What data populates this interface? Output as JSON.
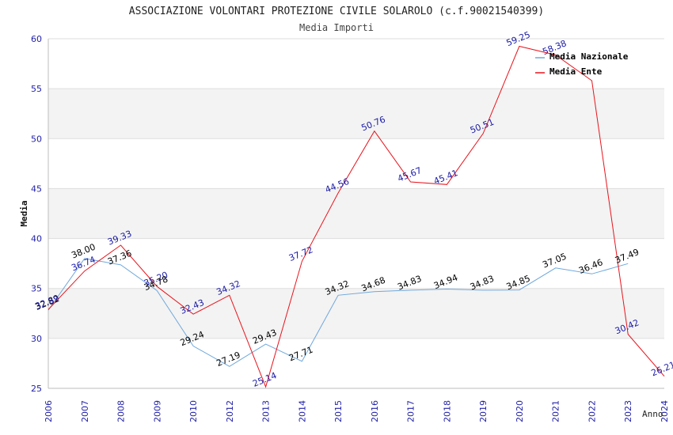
{
  "chart_data": {
    "type": "line",
    "title": "ASSOCIAZIONE VOLONTARI PROTEZIONE CIVILE SOLAROLO (c.f.90021540399)",
    "subtitle": "Media Importi",
    "xlabel": "Anno",
    "ylabel": "Media",
    "ylim": [
      25,
      60
    ],
    "yticks": [
      "25",
      "30",
      "35",
      "40",
      "45",
      "50",
      "55",
      "60"
    ],
    "categories": [
      "2006",
      "2007",
      "2008",
      "2009",
      "2010",
      "2012",
      "2013",
      "2014",
      "2015",
      "2016",
      "2017",
      "2018",
      "2019",
      "2020",
      "2021",
      "2022",
      "2023",
      "2024"
    ],
    "grid": true,
    "legend_position": "top-right",
    "series": [
      {
        "name": "Media Nazionale",
        "color": "#6fa8dc",
        "label_color": "#000000",
        "values": [
          32.82,
          38.0,
          37.36,
          34.78,
          29.24,
          27.19,
          29.43,
          27.71,
          34.32,
          34.68,
          34.83,
          34.94,
          34.83,
          34.85,
          37.05,
          36.46,
          37.49,
          null
        ],
        "labels": [
          "32.82",
          "38.00",
          "37.36",
          "34.78",
          "29.24",
          "27.19",
          "29.43",
          "27.71",
          "34.32",
          "34.68",
          "34.83",
          "34.94",
          "34.83",
          "34.85",
          "37.05",
          "36.46",
          "37.49",
          ""
        ]
      },
      {
        "name": "Media Ente",
        "color": "#e8141c",
        "label_color": "#1a1aa6",
        "values": [
          32.89,
          36.74,
          39.33,
          35.2,
          32.43,
          34.32,
          25.14,
          37.72,
          44.56,
          50.76,
          45.67,
          45.41,
          50.51,
          59.25,
          58.38,
          55.8,
          30.42,
          26.21
        ],
        "labels": [
          "32.89",
          "36.74",
          "39.33",
          "35.20",
          "32.43",
          "34.32",
          "25.14",
          "37.72",
          "44.56",
          "50.76",
          "45.67",
          "45.41",
          "50.51",
          "59.25",
          "58.38",
          "",
          "30.42",
          "26.21"
        ]
      }
    ]
  }
}
